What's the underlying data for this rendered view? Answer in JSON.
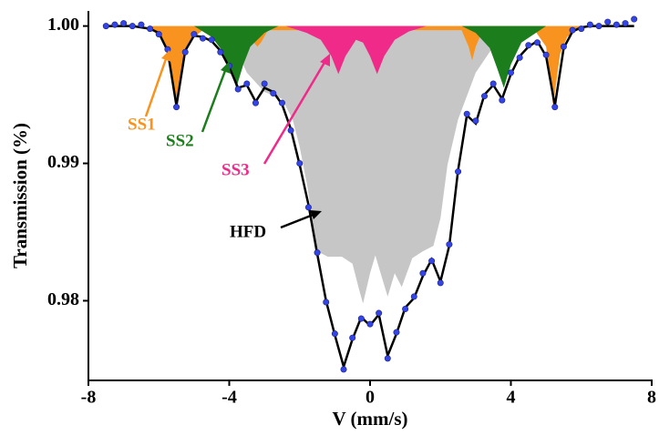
{
  "chart_data": {
    "type": "line",
    "xlabel": "V (mm/s)",
    "ylabel": "Transmission (%)",
    "xlim": [
      -8,
      8
    ],
    "ylim": [
      0.9742,
      1.0011
    ],
    "xticks": [
      -8,
      -4,
      0,
      4,
      8
    ],
    "yticks": [
      {
        "value": 1.0,
        "label": "1.00"
      },
      0.99,
      0.98
    ],
    "x": [
      -7.5,
      -7.25,
      -7.0,
      -6.75,
      -6.5,
      -6.25,
      -6.0,
      -5.75,
      -5.5,
      -5.25,
      -5.0,
      -4.75,
      -4.5,
      -4.25,
      -4.0,
      -3.75,
      -3.5,
      -3.25,
      -3.0,
      -2.75,
      -2.5,
      -2.25,
      -2.0,
      -1.75,
      -1.5,
      -1.25,
      -1.0,
      -0.75,
      -0.5,
      -0.25,
      0,
      0.25,
      0.5,
      0.75,
      1.0,
      1.25,
      1.5,
      1.75,
      2.0,
      2.25,
      2.5,
      2.75,
      3.0,
      3.25,
      3.5,
      3.75,
      4.0,
      4.25,
      4.5,
      4.75,
      5.0,
      5.25,
      5.5,
      5.75,
      6.0,
      6.25,
      6.5,
      6.75,
      7.0,
      7.25,
      7.5
    ],
    "series": [
      {
        "name": "HFD",
        "mark": "area",
        "color": "#c6c6c6",
        "x": [
          -7.5,
          -5,
          -4,
          -3.5,
          -3,
          -2.5,
          -2.2,
          -2.0,
          -1.8,
          -1.6,
          -1.5,
          -1.2,
          -0.8,
          -0.5,
          -0.3,
          -0.2,
          0,
          0.15,
          0.3,
          0.5,
          0.7,
          0.9,
          1.2,
          1.5,
          1.8,
          2.0,
          2.2,
          2.5,
          3.0,
          3.5,
          4.0,
          5.0,
          7.5
        ],
        "values": [
          1.0,
          1.0,
          0.9995,
          0.9966,
          0.9952,
          0.9947,
          0.9932,
          0.9912,
          0.9886,
          0.9853,
          0.9836,
          0.9832,
          0.9832,
          0.9827,
          0.9807,
          0.9798,
          0.982,
          0.9833,
          0.982,
          0.9803,
          0.982,
          0.981,
          0.9831,
          0.9836,
          0.984,
          0.986,
          0.9899,
          0.9932,
          0.9966,
          0.9985,
          0.9995,
          1.0,
          1.0
        ]
      },
      {
        "name": "SS1",
        "mark": "area",
        "color": "#f7931e",
        "x": [
          -6.3,
          -5.9,
          -5.7,
          -5.5,
          -5.3,
          -5.1,
          -4.7,
          -3.5,
          -3.3,
          -3.2,
          -3.1,
          -2.9,
          2.6,
          2.8,
          2.9,
          3.0,
          3.2,
          4.7,
          5.0,
          5.2,
          5.4,
          5.6,
          6.0
        ],
        "values": [
          1.0,
          0.999,
          0.9975,
          0.9942,
          0.9975,
          0.999,
          0.9998,
          0.9996,
          0.9988,
          0.9985,
          0.9988,
          0.9997,
          0.9997,
          0.9985,
          0.9975,
          0.9985,
          0.9997,
          0.9996,
          0.9985,
          0.9942,
          0.998,
          0.9992,
          1.0
        ]
      },
      {
        "name": "SS2",
        "mark": "area",
        "color": "#1b7d1b",
        "x": [
          -5.0,
          -4.5,
          -4.2,
          -4.0,
          -3.8,
          -3.6,
          -3.4,
          -3.0,
          -2.6,
          2.6,
          3.0,
          3.4,
          3.6,
          3.8,
          4.0,
          4.3,
          5.0
        ],
        "values": [
          1.0,
          0.9992,
          0.9982,
          0.997,
          0.9955,
          0.9972,
          0.9985,
          0.9995,
          1.0,
          1.0,
          0.9995,
          0.9984,
          0.997,
          0.9955,
          0.9972,
          0.9988,
          1.0
        ]
      },
      {
        "name": "SS3",
        "mark": "area",
        "color": "#ef2a88",
        "x": [
          -2.4,
          -1.8,
          -1.4,
          -1.1,
          -0.9,
          -0.7,
          -0.4,
          -0.2,
          0,
          0.2,
          0.4,
          0.7,
          1.1,
          1.6
        ],
        "values": [
          1.0,
          0.9995,
          0.999,
          0.9978,
          0.9965,
          0.9978,
          0.999,
          0.9988,
          0.9978,
          0.9965,
          0.9978,
          0.999,
          0.9996,
          1.0
        ]
      },
      {
        "mark": "line",
        "color": "#000000",
        "values": [
          1.0,
          1.0,
          1.0,
          1.0,
          0.9999,
          0.9998,
          0.9995,
          0.9982,
          0.9942,
          0.9982,
          0.9993,
          0.9992,
          0.9989,
          0.9982,
          0.997,
          0.9955,
          0.9957,
          0.9945,
          0.9955,
          0.9952,
          0.9943,
          0.9925,
          0.9899,
          0.987,
          0.9834,
          0.98,
          0.9775,
          0.9752,
          0.9772,
          0.9788,
          0.9782,
          0.979,
          0.976,
          0.9776,
          0.9795,
          0.9802,
          0.9818,
          0.983,
          0.9814,
          0.984,
          0.9895,
          0.9935,
          0.9929,
          0.995,
          0.9957,
          0.9947,
          0.9965,
          0.9978,
          0.9985,
          0.9989,
          0.9978,
          0.9942,
          0.9984,
          0.9996,
          0.9999,
          1.0,
          1.0,
          1.0,
          1.0,
          1.0,
          1.0
        ]
      },
      {
        "mark": "scatter",
        "color": "#3444e6",
        "values": [
          1.0,
          1.0001,
          1.0002,
          1.0,
          1.0001,
          0.9998,
          0.9994,
          0.9983,
          0.9941,
          0.9981,
          0.9994,
          0.9991,
          0.999,
          0.9981,
          0.9971,
          0.9954,
          0.9958,
          0.9944,
          0.9958,
          0.9951,
          0.9944,
          0.9924,
          0.99,
          0.9868,
          0.9835,
          0.9799,
          0.9776,
          0.975,
          0.9773,
          0.9787,
          0.9783,
          0.9791,
          0.9758,
          0.9777,
          0.9794,
          0.9803,
          0.982,
          0.9829,
          0.9813,
          0.9841,
          0.9894,
          0.9936,
          0.9931,
          0.9949,
          0.9958,
          0.9946,
          0.9966,
          0.9977,
          0.9986,
          0.9988,
          0.9979,
          0.9941,
          0.9985,
          0.9997,
          0.9998,
          1.0001,
          1.0,
          1.0003,
          1.0001,
          1.0002,
          1.0005
        ]
      }
    ],
    "annotations": [
      {
        "series": 1
      },
      {
        "series": 2
      },
      {
        "series": 3
      },
      {
        "series": 0
      }
    ]
  }
}
